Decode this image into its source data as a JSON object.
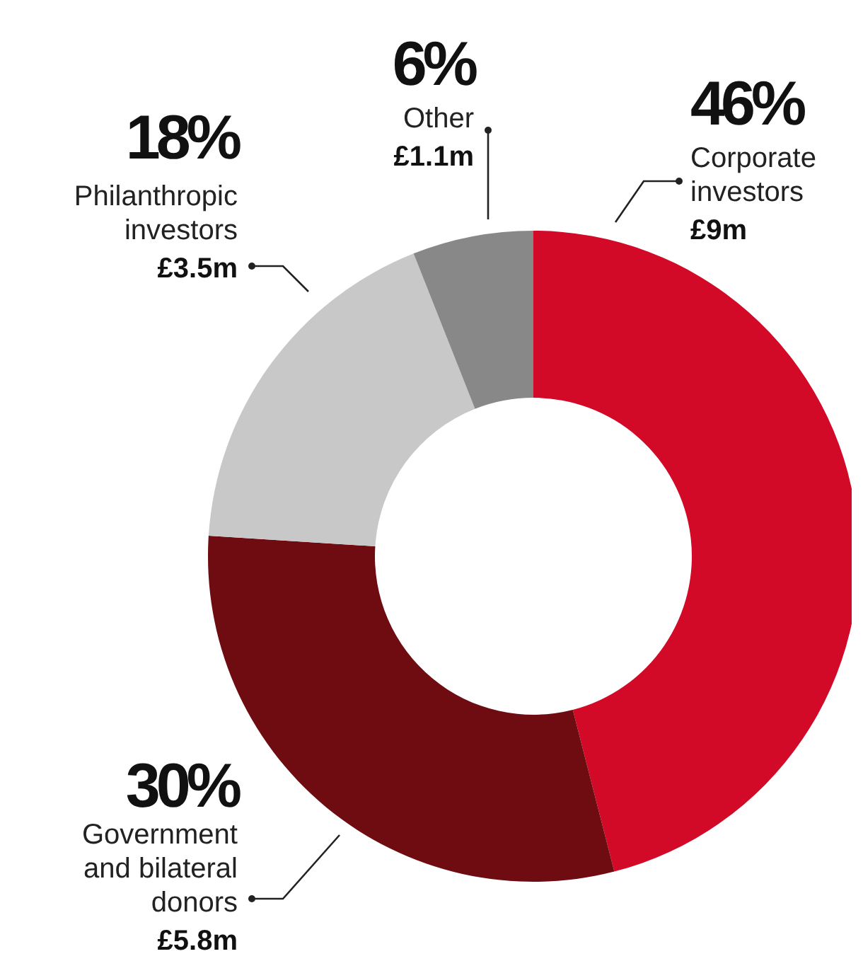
{
  "chart_data": {
    "type": "donut",
    "categories": [
      "Corporate investors",
      "Government and bilateral donors",
      "Philanthropic investors",
      "Other"
    ],
    "values": [
      46,
      30,
      18,
      6
    ],
    "colors": [
      "#d20a28",
      "#6e0c12",
      "#c8c8c8",
      "#888888"
    ],
    "value_labels": [
      "46%",
      "30%",
      "18%",
      "6%"
    ],
    "annotations": [
      {
        "text": "£9m",
        "x": "Corporate investors"
      },
      {
        "text": "£5.8m",
        "x": "Government and bilateral donors"
      },
      {
        "text": "£3.5m",
        "x": "Philanthropic investors"
      },
      {
        "text": "£1.1m",
        "x": "Other"
      }
    ],
    "legend": false
  }
}
